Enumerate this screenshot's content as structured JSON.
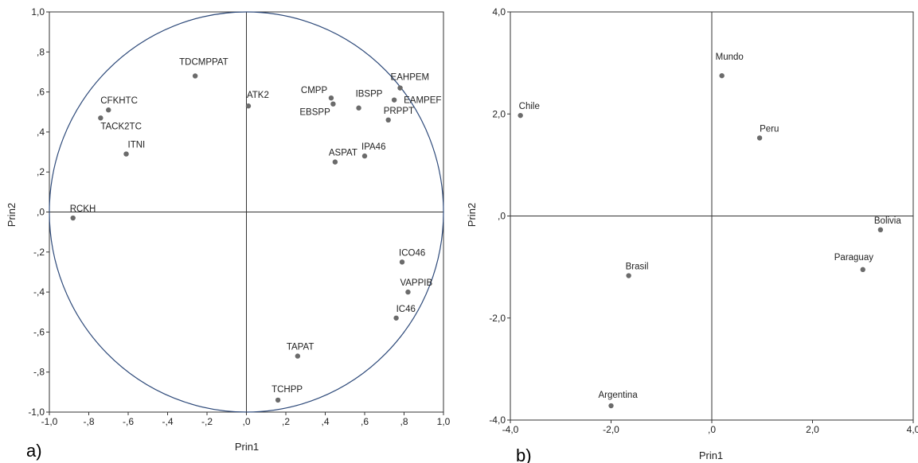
{
  "chart_data": [
    {
      "type": "scatter",
      "panel_label": "a)",
      "xlabel": "Prin1",
      "ylabel": "Prin2",
      "xlim": [
        -1.0,
        1.0
      ],
      "ylim": [
        -1.0,
        1.0
      ],
      "x_ticks": [
        "-1,0",
        "-,8",
        "-,6",
        "-,4",
        "-,2",
        ",0",
        ",2",
        ",4",
        ",6",
        ",8",
        "1,0"
      ],
      "y_ticks": [
        "1,0",
        ",8",
        ",6",
        ",4",
        ",2",
        ",0",
        "-,2",
        "-,4",
        "-,6",
        "-,8",
        "-1,0"
      ],
      "circle": true,
      "circle_color": "#2e4a7a",
      "points": [
        {
          "label": "TDCMPPAT",
          "x": -0.26,
          "y": 0.68
        },
        {
          "label": "CFKHTC",
          "x": -0.7,
          "y": 0.51
        },
        {
          "label": "TACK2TC",
          "x": -0.74,
          "y": 0.47
        },
        {
          "label": "ITNI",
          "x": -0.61,
          "y": 0.29
        },
        {
          "label": "RCKH",
          "x": -0.88,
          "y": -0.03
        },
        {
          "label": "ATK2",
          "x": 0.01,
          "y": 0.53
        },
        {
          "label": "CMPP",
          "x": 0.43,
          "y": 0.57
        },
        {
          "label": "EBSPP",
          "x": 0.44,
          "y": 0.54
        },
        {
          "label": "IBSPP",
          "x": 0.57,
          "y": 0.52
        },
        {
          "label": "EAHPEM",
          "x": 0.78,
          "y": 0.62
        },
        {
          "label": "EAMPEF",
          "x": 0.75,
          "y": 0.56
        },
        {
          "label": "PRPPT",
          "x": 0.72,
          "y": 0.46
        },
        {
          "label": "ASPAT",
          "x": 0.45,
          "y": 0.25
        },
        {
          "label": "IPA46",
          "x": 0.6,
          "y": 0.28
        },
        {
          "label": "ICO46",
          "x": 0.79,
          "y": -0.25
        },
        {
          "label": "VAPPIB",
          "x": 0.82,
          "y": -0.4
        },
        {
          "label": "IC46",
          "x": 0.76,
          "y": -0.53
        },
        {
          "label": "TAPAT",
          "x": 0.26,
          "y": -0.72
        },
        {
          "label": "TCHPP",
          "x": 0.16,
          "y": -0.94
        }
      ]
    },
    {
      "type": "scatter",
      "panel_label": "b)",
      "xlabel": "Prin1",
      "ylabel": "Prin2",
      "xlim": [
        -4.0,
        4.0
      ],
      "ylim": [
        -4.0,
        4.0
      ],
      "x_ticks": [
        "-4,0",
        "-2,0",
        ",0",
        "2,0",
        "4,0"
      ],
      "y_ticks": [
        "4,0",
        "2,0",
        ",0",
        "-2,0",
        "-4,0"
      ],
      "circle": false,
      "points": [
        {
          "label": "Chile",
          "x": -3.8,
          "y": 1.97
        },
        {
          "label": "Mundo",
          "x": 0.2,
          "y": 2.75
        },
        {
          "label": "Peru",
          "x": 0.95,
          "y": 1.53
        },
        {
          "label": "Bolivia",
          "x": 3.35,
          "y": -0.27
        },
        {
          "label": "Paraguay",
          "x": 3.0,
          "y": -1.05
        },
        {
          "label": "Brasil",
          "x": -1.65,
          "y": -1.17
        },
        {
          "label": "Argentina",
          "x": -2.0,
          "y": -3.72
        }
      ]
    }
  ],
  "colors": {
    "point": "#6b6b6b",
    "frame": "#333333",
    "circle": "#2e4a7a"
  }
}
